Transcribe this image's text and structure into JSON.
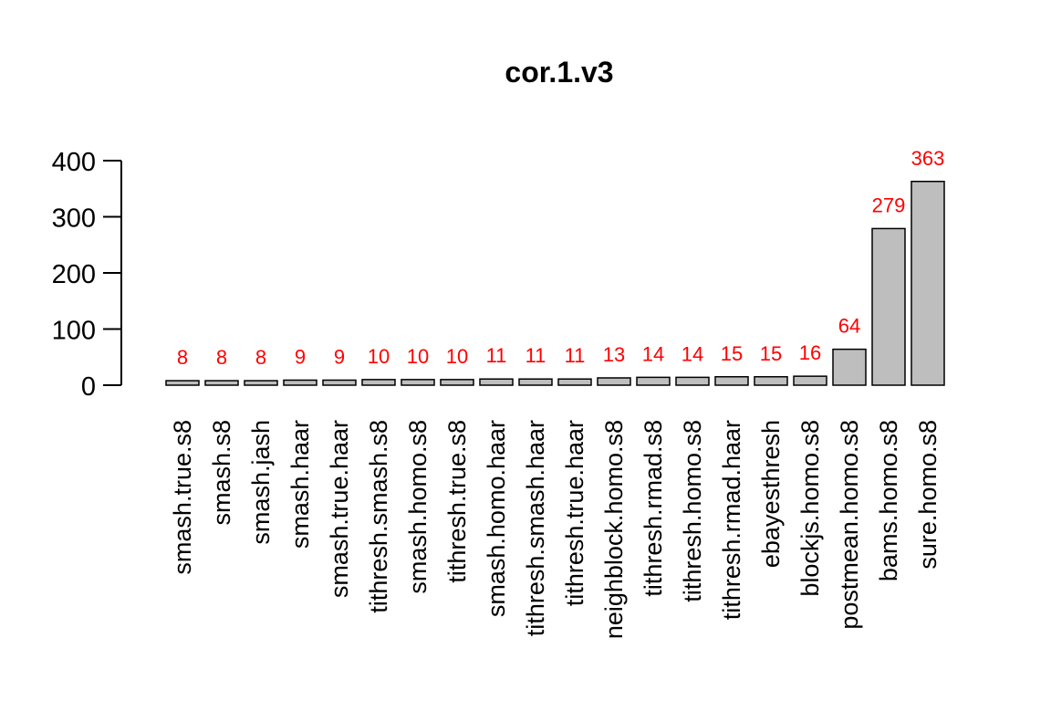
{
  "chart_data": {
    "type": "bar",
    "title": "cor.1.v3",
    "xlabel": "",
    "ylabel": "",
    "ylim": [
      0,
      400
    ],
    "yticks": [
      "0",
      "100",
      "200",
      "300",
      "400"
    ],
    "categories": [
      "smash.true.s8",
      "smash.s8",
      "smash.jash",
      "smash.haar",
      "smash.true.haar",
      "tithresh.smash.s8",
      "smash.homo.s8",
      "tithresh.true.s8",
      "smash.homo.haar",
      "tithresh.smash.haar",
      "tithresh.true.haar",
      "neighblock.homo.s8",
      "tithresh.rmad.s8",
      "tithresh.homo.s8",
      "tithresh.rmad.haar",
      "ebayesthresh",
      "blockjs.homo.s8",
      "postmean.homo.s8",
      "bams.homo.s8",
      "sure.homo.s8"
    ],
    "values": [
      8,
      8,
      8,
      9,
      9,
      10,
      10,
      10,
      11,
      11,
      11,
      13,
      14,
      14,
      15,
      15,
      16,
      64,
      279,
      363
    ],
    "data_labels": [
      "8",
      "8",
      "8",
      "9",
      "9",
      "10",
      "10",
      "10",
      "11",
      "11",
      "11",
      "13",
      "14",
      "14",
      "15",
      "15",
      "16",
      "64",
      "279",
      "363"
    ],
    "grid": false,
    "legend": "none",
    "colors": {
      "bar_fill": "#bebebe",
      "bar_stroke": "#000000",
      "data_label": "#ff0000",
      "text": "#000000"
    }
  }
}
